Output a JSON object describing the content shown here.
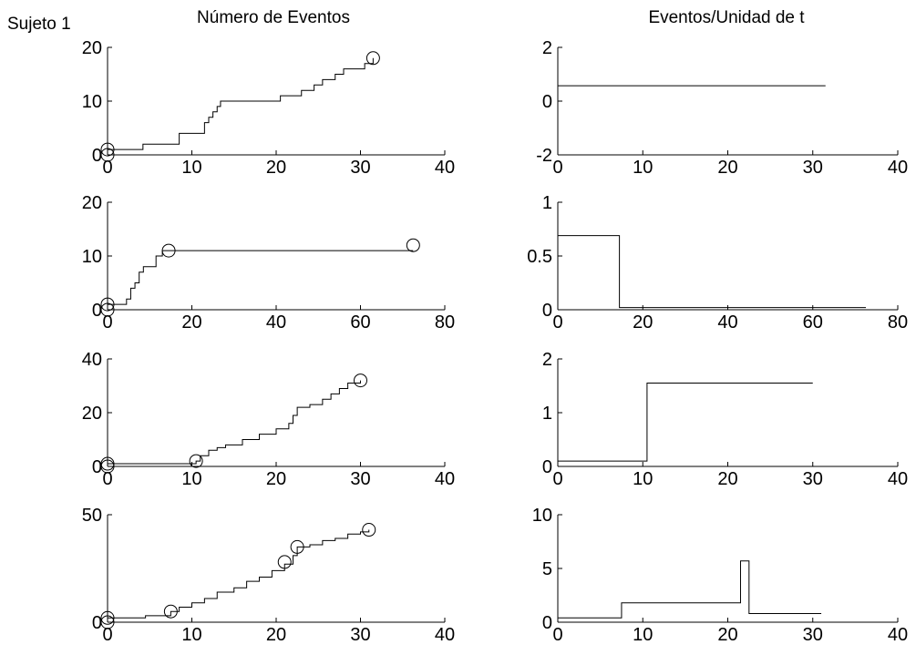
{
  "figure": {
    "row_label": "Sujeto 1",
    "col_titles": [
      "Número de Eventos",
      "Eventos/Unidad de t"
    ]
  },
  "chart_data": [
    {
      "type": "line",
      "step": true,
      "row": 0,
      "col": 0,
      "xlim": [
        0,
        40
      ],
      "ylim": [
        0,
        20
      ],
      "xticks": [
        0,
        10,
        20,
        30,
        40
      ],
      "yticks": [
        0,
        10,
        20
      ],
      "xtick_labels": [
        "0",
        "10",
        "20",
        "30",
        "40"
      ],
      "ytick_labels": [
        "0",
        "10",
        "20"
      ],
      "series": [
        {
          "x": [
            0,
            4.2,
            8.5,
            11.5,
            12.0,
            12.5,
            13.0,
            13.4,
            14.0,
            20.5,
            23.0,
            24.5,
            25.5,
            27.0,
            28.0,
            30.5,
            31.5
          ],
          "y": [
            1,
            2,
            4,
            6,
            7,
            8,
            9,
            10,
            10,
            11,
            12,
            13,
            14,
            15,
            16,
            17,
            18
          ]
        }
      ],
      "markers": [
        {
          "x": 0,
          "y": 0
        },
        {
          "x": 0,
          "y": 1
        },
        {
          "x": 31.5,
          "y": 18
        }
      ]
    },
    {
      "type": "line",
      "step": true,
      "row": 0,
      "col": 1,
      "xlim": [
        0,
        40
      ],
      "ylim": [
        -2,
        2
      ],
      "xticks": [
        0,
        10,
        20,
        30,
        40
      ],
      "yticks": [
        -2,
        0,
        2
      ],
      "xtick_labels": [
        "0",
        "10",
        "20",
        "30",
        "40"
      ],
      "ytick_labels": [
        "-2",
        "0",
        "2"
      ],
      "series": [
        {
          "x": [
            0,
            31.5
          ],
          "y": [
            0.57,
            0.57
          ]
        }
      ],
      "markers": []
    },
    {
      "type": "line",
      "step": true,
      "row": 1,
      "col": 0,
      "xlim": [
        0,
        80
      ],
      "ylim": [
        0,
        20
      ],
      "xticks": [
        0,
        20,
        40,
        60,
        80
      ],
      "yticks": [
        0,
        10,
        20
      ],
      "xtick_labels": [
        "0",
        "20",
        "40",
        "60",
        "80"
      ],
      "ytick_labels": [
        "0",
        "10",
        "20"
      ],
      "series": [
        {
          "x": [
            0,
            4.5,
            5.5,
            6.5,
            7.5,
            8.5,
            9.5,
            11.5,
            13.0,
            14.5,
            72.5
          ],
          "y": [
            1,
            2,
            4,
            5,
            7,
            8,
            8,
            10,
            11,
            11,
            11
          ]
        }
      ],
      "markers": [
        {
          "x": 0,
          "y": 0
        },
        {
          "x": 0,
          "y": 1
        },
        {
          "x": 14.5,
          "y": 11
        },
        {
          "x": 72.5,
          "y": 12
        }
      ]
    },
    {
      "type": "line",
      "step": true,
      "row": 1,
      "col": 1,
      "xlim": [
        0,
        80
      ],
      "ylim": [
        0,
        1
      ],
      "xticks": [
        0,
        20,
        40,
        60,
        80
      ],
      "yticks": [
        0,
        0.5,
        1
      ],
      "xtick_labels": [
        "0",
        "20",
        "40",
        "60",
        "80"
      ],
      "ytick_labels": [
        "0",
        "0.5",
        "1"
      ],
      "series": [
        {
          "x": [
            0,
            14.5,
            72.5
          ],
          "y": [
            0.69,
            0.02,
            0.02
          ]
        }
      ],
      "markers": []
    },
    {
      "type": "line",
      "step": true,
      "row": 2,
      "col": 0,
      "xlim": [
        0,
        40
      ],
      "ylim": [
        0,
        40
      ],
      "xticks": [
        0,
        10,
        20,
        30,
        40
      ],
      "yticks": [
        0,
        20,
        40
      ],
      "xtick_labels": [
        "0",
        "10",
        "20",
        "30",
        "40"
      ],
      "ytick_labels": [
        "0",
        "20",
        "40"
      ],
      "series": [
        {
          "x": [
            0,
            10.5,
            11.0,
            12.0,
            13.0,
            14.0,
            16.0,
            18.0,
            20.0,
            21.5,
            22.0,
            22.5,
            24.0,
            25.5,
            26.5,
            27.5,
            28.5,
            30.0
          ],
          "y": [
            1,
            2,
            4,
            6,
            7,
            8,
            10,
            12,
            14,
            16,
            19,
            22,
            23,
            25,
            27,
            29,
            31,
            32
          ]
        }
      ],
      "markers": [
        {
          "x": 0,
          "y": 0
        },
        {
          "x": 0,
          "y": 1
        },
        {
          "x": 10.5,
          "y": 2
        },
        {
          "x": 30.0,
          "y": 32
        }
      ]
    },
    {
      "type": "line",
      "step": true,
      "row": 2,
      "col": 1,
      "xlim": [
        0,
        40
      ],
      "ylim": [
        0,
        2
      ],
      "xticks": [
        0,
        10,
        20,
        30,
        40
      ],
      "yticks": [
        0,
        1,
        2
      ],
      "xtick_labels": [
        "0",
        "10",
        "20",
        "30",
        "40"
      ],
      "ytick_labels": [
        "0",
        "1",
        "2"
      ],
      "series": [
        {
          "x": [
            0,
            10.5,
            30.0
          ],
          "y": [
            0.1,
            1.55,
            1.55
          ]
        }
      ],
      "markers": []
    },
    {
      "type": "line",
      "step": true,
      "row": 3,
      "col": 0,
      "xlim": [
        0,
        40
      ],
      "ylim": [
        0,
        50
      ],
      "xticks": [
        0,
        10,
        20,
        30,
        40
      ],
      "yticks": [
        0,
        50
      ],
      "xtick_labels": [
        "0",
        "10",
        "20",
        "30",
        "40"
      ],
      "ytick_labels": [
        "0",
        "50"
      ],
      "series": [
        {
          "x": [
            0,
            4.5,
            7.5,
            8.5,
            10.0,
            11.5,
            13.0,
            15.0,
            16.5,
            18.0,
            19.5,
            21.0,
            22.0,
            22.5,
            24.0,
            25.5,
            27.0,
            28.5,
            30.0,
            31.0
          ],
          "y": [
            2,
            3,
            5,
            7,
            9,
            11,
            14,
            16,
            19,
            21,
            24,
            27,
            31,
            35,
            36,
            38,
            39,
            41,
            42,
            43
          ]
        }
      ],
      "markers": [
        {
          "x": 0,
          "y": 0
        },
        {
          "x": 0,
          "y": 2
        },
        {
          "x": 7.5,
          "y": 5
        },
        {
          "x": 21.0,
          "y": 28
        },
        {
          "x": 22.5,
          "y": 35
        },
        {
          "x": 31.0,
          "y": 43
        }
      ]
    },
    {
      "type": "line",
      "step": true,
      "row": 3,
      "col": 1,
      "xlim": [
        0,
        40
      ],
      "ylim": [
        0,
        10
      ],
      "xticks": [
        0,
        10,
        20,
        30,
        40
      ],
      "yticks": [
        0,
        5,
        10
      ],
      "xtick_labels": [
        "0",
        "10",
        "20",
        "30",
        "40"
      ],
      "ytick_labels": [
        "0",
        "5",
        "10"
      ],
      "series": [
        {
          "x": [
            0,
            7.5,
            21.5,
            22.5,
            31.0
          ],
          "y": [
            0.4,
            1.8,
            5.7,
            0.8,
            0.8
          ]
        }
      ],
      "markers": []
    }
  ]
}
